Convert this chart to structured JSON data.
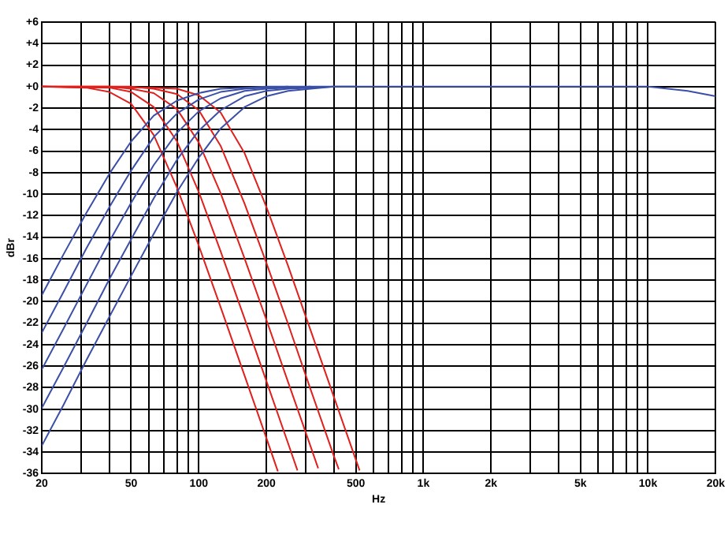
{
  "chart_data": {
    "type": "line",
    "xlabel": "Hz",
    "ylabel": "dBr",
    "log": "x",
    "grid": true,
    "marker": "none",
    "line_style": "solid",
    "xlim": [
      20,
      20000
    ],
    "ylim": [
      -36,
      6
    ],
    "xticks": [
      20,
      {
        "value": 30,
        "label": null
      },
      {
        "value": 40,
        "label": null
      },
      50,
      {
        "value": 60,
        "label": null
      },
      {
        "value": 70,
        "label": null
      },
      {
        "value": 80,
        "label": null
      },
      {
        "value": 90,
        "label": null
      },
      100,
      200,
      {
        "value": 300,
        "label": null
      },
      {
        "value": 400,
        "label": null
      },
      500,
      {
        "value": 600,
        "label": null
      },
      {
        "value": 700,
        "label": null
      },
      {
        "value": 800,
        "label": null
      },
      {
        "value": 900,
        "label": null
      },
      {
        "value": 1000,
        "label": "1k"
      },
      {
        "value": 2000,
        "label": "2k"
      },
      {
        "value": 3000,
        "label": null
      },
      {
        "value": 4000,
        "label": null
      },
      {
        "value": 5000,
        "label": "5k"
      },
      {
        "value": 6000,
        "label": null
      },
      {
        "value": 7000,
        "label": null
      },
      {
        "value": 8000,
        "label": null
      },
      {
        "value": 9000,
        "label": null
      },
      {
        "value": 10000,
        "label": "10k"
      },
      {
        "value": 20000,
        "label": "20k"
      }
    ],
    "yticks": [
      {
        "value": 6,
        "label": "+6"
      },
      {
        "value": 4,
        "label": "+4"
      },
      {
        "value": 2,
        "label": "+2"
      },
      {
        "value": 0,
        "label": "+0"
      },
      -2,
      -4,
      -6,
      -8,
      -10,
      -12,
      -14,
      -16,
      -18,
      -20,
      -22,
      -24,
      -26,
      -28,
      -30,
      -32,
      -34,
      -36
    ],
    "series": [
      {
        "color": "#3b4fa8",
        "x": [
          20,
          25,
          31.5,
          40,
          50,
          63,
          80,
          100,
          125,
          160,
          200,
          1000,
          10000,
          15000,
          20000
        ],
        "values": [
          -19.4,
          -15.6,
          -11.8,
          -8.1,
          -5.1,
          -2.7,
          -1.3,
          -0.6,
          -0.2,
          -0.1,
          0,
          0,
          0,
          -0.4,
          -0.9
        ]
      },
      {
        "color": "#3b4fa8",
        "x": [
          20,
          25,
          31.5,
          40,
          50,
          63,
          80,
          100,
          125,
          160,
          200,
          250
        ],
        "values": [
          -22.9,
          -19.1,
          -15.1,
          -11.2,
          -7.8,
          -4.7,
          -2.5,
          -1.2,
          -0.5,
          -0.2,
          -0.1,
          0
        ]
      },
      {
        "color": "#3b4fa8",
        "x": [
          20,
          25,
          31.5,
          40,
          50,
          63,
          80,
          100,
          125,
          160,
          200,
          250,
          315
        ],
        "values": [
          -26.3,
          -22.5,
          -18.5,
          -14.4,
          -10.8,
          -7.3,
          -4.3,
          -2.3,
          -1.1,
          -0.4,
          -0.2,
          -0.1,
          0
        ]
      },
      {
        "color": "#3b4fa8",
        "x": [
          20,
          25,
          31.5,
          40,
          50,
          63,
          80,
          100,
          125,
          160,
          200,
          250,
          315,
          400
        ],
        "values": [
          -29.9,
          -26.1,
          -22.1,
          -17.9,
          -14.2,
          -10.4,
          -6.8,
          -4.1,
          -2.2,
          -0.9,
          -0.4,
          -0.2,
          -0.1,
          0
        ]
      },
      {
        "color": "#3b4fa8",
        "x": [
          20,
          25,
          31.5,
          40,
          50,
          63,
          80,
          100,
          125,
          160,
          200,
          250,
          315,
          400,
          500
        ],
        "values": [
          -33.4,
          -29.6,
          -25.5,
          -21.4,
          -17.6,
          -13.7,
          -9.8,
          -6.6,
          -3.9,
          -1.9,
          -0.9,
          -0.4,
          -0.2,
          0,
          0
        ]
      },
      {
        "color": "#e0201c",
        "x": [
          20,
          31.5,
          40,
          50,
          63,
          80,
          100,
          125,
          160,
          200,
          225
        ],
        "values": [
          0,
          -0.1,
          -0.5,
          -1.6,
          -4.5,
          -9.4,
          -14.8,
          -20.5,
          -26.9,
          -32.7,
          -35.8
        ]
      },
      {
        "color": "#e0201c",
        "x": [
          20,
          40,
          50,
          63,
          80,
          100,
          125,
          160,
          200,
          250,
          275
        ],
        "values": [
          0,
          -0.1,
          -0.5,
          -1.9,
          -5.1,
          -9.8,
          -15.3,
          -21.6,
          -27.4,
          -33.2,
          -35.7
        ]
      },
      {
        "color": "#e0201c",
        "x": [
          20,
          40,
          50,
          63,
          80,
          100,
          125,
          160,
          200,
          250,
          315,
          340
        ],
        "values": [
          0,
          0,
          -0.2,
          -0.6,
          -2.1,
          -5.2,
          -9.9,
          -16.0,
          -21.7,
          -27.5,
          -33.5,
          -35.5
        ]
      },
      {
        "color": "#e0201c",
        "x": [
          20,
          50,
          63,
          80,
          100,
          125,
          160,
          200,
          250,
          315,
          400,
          420
        ],
        "values": [
          0,
          0,
          -0.2,
          -0.7,
          -2.2,
          -5.5,
          -10.9,
          -16.4,
          -22.1,
          -28.2,
          -34.4,
          -35.6
        ]
      },
      {
        "color": "#e0201c",
        "x": [
          20,
          63,
          80,
          100,
          125,
          160,
          200,
          250,
          315,
          400,
          500,
          520
        ],
        "values": [
          0,
          -0.1,
          -0.2,
          -0.8,
          -2.4,
          -6.2,
          -11.2,
          -16.7,
          -22.7,
          -28.9,
          -34.7,
          -35.7
        ]
      }
    ]
  }
}
